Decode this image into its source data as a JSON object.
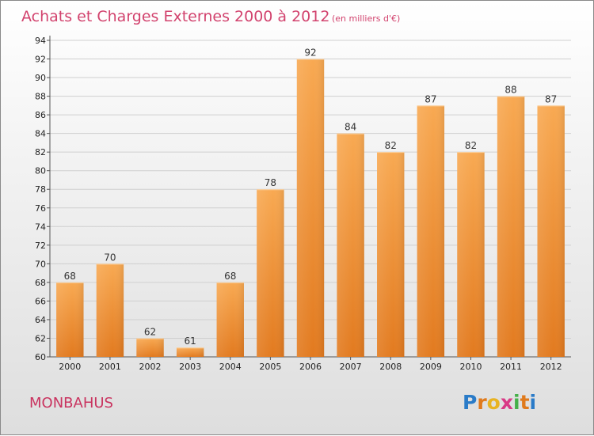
{
  "title": "Achats et Charges Externes 2000 à 2012",
  "unit": "(en milliers d'€)",
  "commune": "MONBAHUS",
  "logo": {
    "letters": [
      "P",
      "r",
      "o",
      "x",
      "i",
      "t",
      "i"
    ],
    "colors": [
      "#2a7bc8",
      "#e07a1c",
      "#e8b322",
      "#d93a86",
      "#46b04a",
      "#e07a1c",
      "#2a7bc8"
    ]
  },
  "colors": {
    "bar_light": "#f7a44f",
    "bar_dark": "#e37e22",
    "title": "#d2436e"
  },
  "chart_data": {
    "type": "bar",
    "categories": [
      "2000",
      "2001",
      "2002",
      "2003",
      "2004",
      "2005",
      "2006",
      "2007",
      "2008",
      "2009",
      "2010",
      "2011",
      "2012"
    ],
    "values": [
      68,
      70,
      62,
      61,
      68,
      78,
      92,
      84,
      82,
      87,
      82,
      88,
      87
    ],
    "ylim": [
      60,
      94
    ],
    "yticks": [
      60,
      62,
      64,
      66,
      68,
      70,
      72,
      74,
      76,
      78,
      80,
      82,
      84,
      86,
      88,
      90,
      92,
      94
    ],
    "grid": true,
    "legend": "none"
  }
}
